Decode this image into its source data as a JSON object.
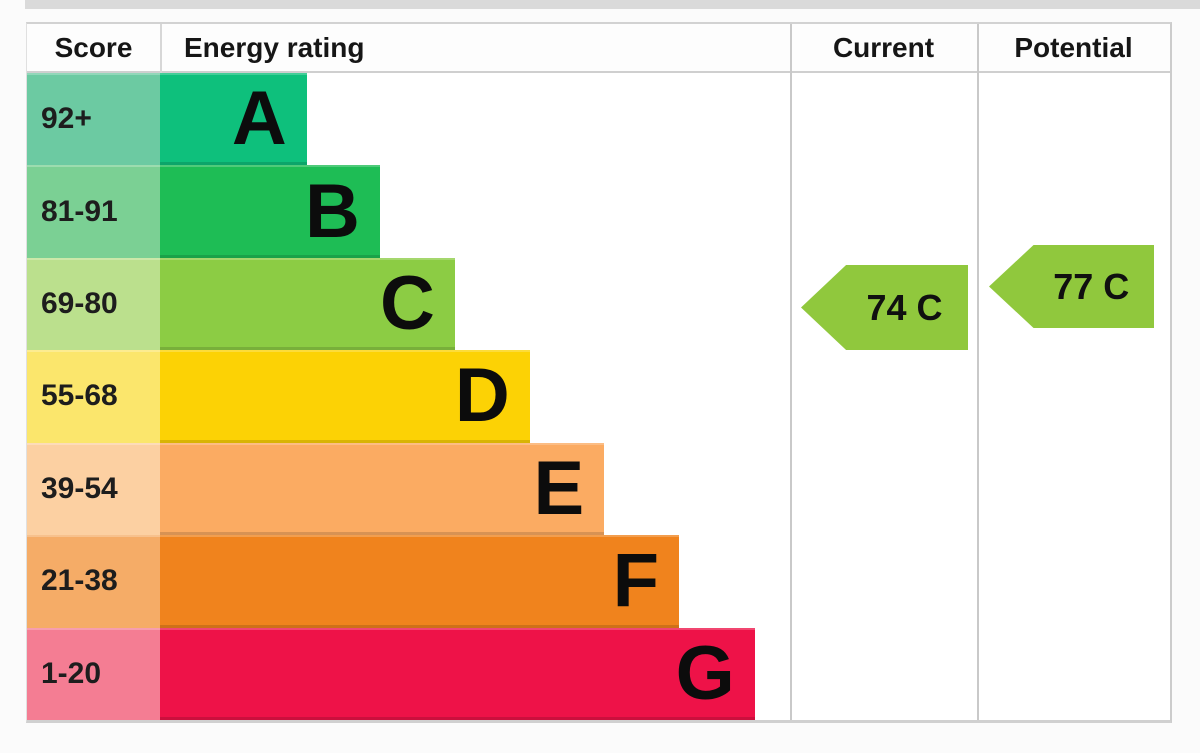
{
  "header": {
    "score": "Score",
    "energy_rating": "Energy rating",
    "current": "Current",
    "potential": "Potential"
  },
  "bands": [
    {
      "letter": "A",
      "score_range": "92+",
      "bar_color": "#0ec07c",
      "score_bg": "#6ccaa2",
      "bar_width_pct": 23.3
    },
    {
      "letter": "B",
      "score_range": "81-91",
      "bar_color": "#1ebd55",
      "score_bg": "#7bd094",
      "bar_width_pct": 34.9
    },
    {
      "letter": "C",
      "score_range": "69-80",
      "bar_color": "#8ccc44",
      "score_bg": "#bbe08d",
      "bar_width_pct": 46.8
    },
    {
      "letter": "D",
      "score_range": "55-68",
      "bar_color": "#fcd205",
      "score_bg": "#fbe66c",
      "bar_width_pct": 58.7
    },
    {
      "letter": "E",
      "score_range": "39-54",
      "bar_color": "#fbab62",
      "score_bg": "#fcd0a2",
      "bar_width_pct": 70.5
    },
    {
      "letter": "F",
      "score_range": "21-38",
      "bar_color": "#f0831d",
      "score_bg": "#f5ac67",
      "bar_width_pct": 82.4
    },
    {
      "letter": "G",
      "score_range": "1-20",
      "bar_color": "#ee1248",
      "score_bg": "#f47d93",
      "bar_width_pct": 94.4
    }
  ],
  "current": {
    "label": "74 C",
    "value": 74,
    "band": "C",
    "arrow_color": "#90c83d"
  },
  "potential": {
    "label": "77 C",
    "value": 77,
    "band": "C",
    "arrow_color": "#90c83d"
  },
  "chart_data": {
    "type": "bar",
    "title": "Energy rating (EPC band chart)",
    "categories": [
      "A",
      "B",
      "C",
      "D",
      "E",
      "F",
      "G"
    ],
    "score_ranges": [
      "92+",
      "81-91",
      "69-80",
      "55-68",
      "39-54",
      "21-38",
      "1-20"
    ],
    "bar_relative_lengths": [
      0.23,
      0.35,
      0.47,
      0.59,
      0.7,
      0.82,
      0.94
    ],
    "band_colors": [
      "#0ec07c",
      "#1ebd55",
      "#8ccc44",
      "#fcd205",
      "#fbab62",
      "#f0831d",
      "#ee1248"
    ],
    "series": [
      {
        "name": "Current",
        "value": 74,
        "band": "C"
      },
      {
        "name": "Potential",
        "value": 77,
        "band": "C"
      }
    ],
    "legend": "none",
    "grid": false,
    "xlabel": "",
    "ylabel": "Score"
  }
}
